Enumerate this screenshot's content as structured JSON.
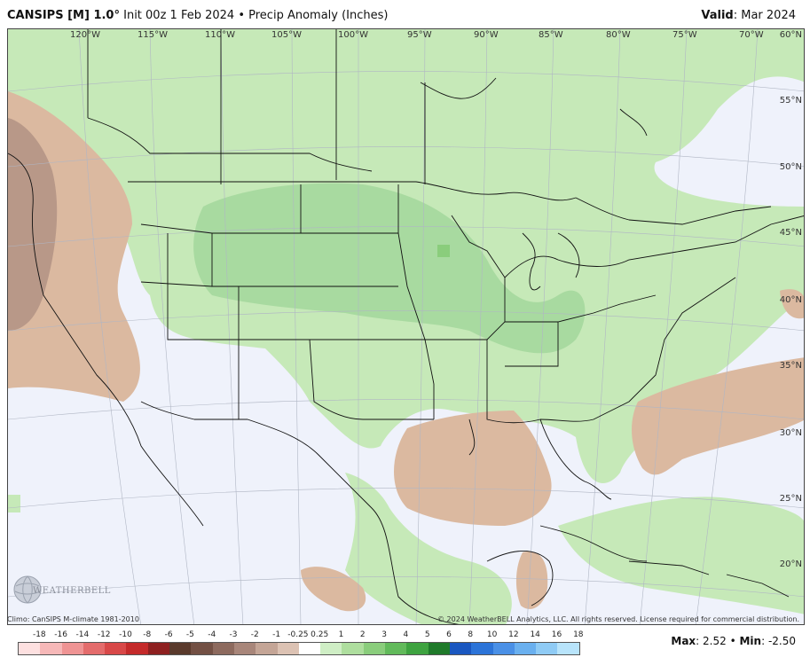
{
  "header": {
    "model": "CANSIPS [M] 1.0°",
    "init": "Init 00z 1 Feb 2024",
    "separator": "•",
    "field": "Precip Anomaly (Inches)",
    "valid_label": "Valid",
    "valid_value": ": Mar 2024"
  },
  "map": {
    "projection": "conic",
    "lon_labels": [
      "120°W",
      "115°W",
      "110°W",
      "105°W",
      "100°W",
      "95°W",
      "90°W",
      "85°W",
      "80°W",
      "75°W",
      "70°W"
    ],
    "lat_labels": [
      "60°N",
      "55°N",
      "50°N",
      "45°N",
      "40°N",
      "35°N",
      "30°N",
      "25°N",
      "20°N"
    ],
    "background_color": "#eff2fb",
    "wet_color": "#c6e9b8",
    "wetter_color": "#a8daa0",
    "dry_color": "#dbb9a0",
    "drier_color": "#b89888"
  },
  "logo": {
    "text": "WEATHERBELL"
  },
  "footer": {
    "climo": "Climo: CanSIPS M-climate 1981-2010",
    "copyright": "© 2024 WeatherBELL Analytics, LLC. All rights reserved. License required for commercial distribution.",
    "max_label": "Max",
    "max_value": ": 2.52",
    "min_label": "Min",
    "min_value": ": -2.50",
    "dot": "•"
  },
  "colorbar": {
    "ticks": [
      "-18",
      "-16",
      "-14",
      "-12",
      "-10",
      "-8",
      "-6",
      "-5",
      "-4",
      "-3",
      "-2",
      "-1",
      "-0.25",
      "0.25",
      "1",
      "2",
      "3",
      "4",
      "5",
      "6",
      "8",
      "10",
      "12",
      "14",
      "16",
      "18"
    ],
    "colors": [
      "#fde0e0",
      "#f6b8b8",
      "#ef9494",
      "#e46c6c",
      "#d84848",
      "#c42a2a",
      "#8e2020",
      "#5a3a2c",
      "#735044",
      "#8d6a5e",
      "#a8867a",
      "#c4a596",
      "#dcc2b3",
      "#ffffff",
      "#cfeec5",
      "#aede9e",
      "#8acd7c",
      "#62ba5b",
      "#3ea340",
      "#1f7a2a",
      "#1a57c0",
      "#2c74d8",
      "#4a90e6",
      "#6ab0ef",
      "#8fcbf5",
      "#b8e4fb"
    ]
  }
}
